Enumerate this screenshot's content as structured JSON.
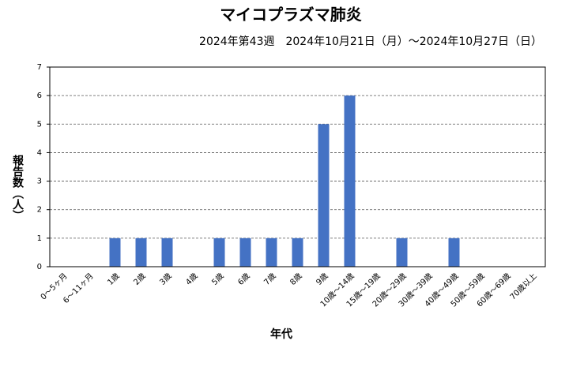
{
  "chart_data": {
    "type": "bar",
    "title": "マイコプラズマ肺炎",
    "subtitle": "2024年第43週　2024年10月21日（月）～2024年10月27日（日）",
    "y_label": "報告数（人）",
    "x_label": "年代",
    "categories": [
      "0～5ヶ月",
      "6～11ヶ月",
      "1歳",
      "2歳",
      "3歳",
      "4歳",
      "5歳",
      "6歳",
      "7歳",
      "8歳",
      "9歳",
      "10歳～14歳",
      "15歳～19歳",
      "20歳～29歳",
      "30歳～39歳",
      "40歳～49歳",
      "50歳～59歳",
      "60歳～69歳",
      "70歳以上"
    ],
    "values": [
      0,
      0,
      1,
      1,
      1,
      0,
      1,
      1,
      1,
      1,
      5,
      6,
      0,
      1,
      0,
      1,
      0,
      0,
      0
    ],
    "color": "#4472c4",
    "ylim": [
      0,
      7
    ],
    "yticks": [
      0,
      1,
      2,
      3,
      4,
      5,
      6,
      7
    ],
    "grid": true
  }
}
